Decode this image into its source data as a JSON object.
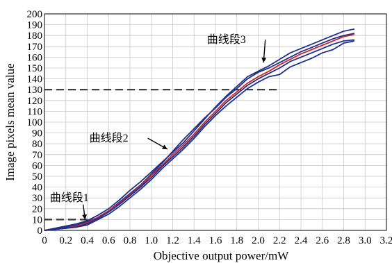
{
  "chart_data": {
    "type": "line",
    "title": "",
    "xlabel": "Objective output power/mW",
    "ylabel": "Image pixels mean value",
    "xlim": [
      0,
      3.2
    ],
    "ylim": [
      0,
      200
    ],
    "grid": true,
    "x_ticks": [
      "0",
      "0.2",
      "0.4",
      "0.6",
      "0.8",
      "1.0",
      "1.2",
      "1.4",
      "1.6",
      "1.8",
      "2.0",
      "2.2",
      "2.4",
      "2.6",
      "2.8",
      "3.0",
      "3.2"
    ],
    "y_ticks": [
      "0",
      "10",
      "20",
      "30",
      "40",
      "50",
      "60",
      "70",
      "80",
      "90",
      "100",
      "110",
      "120",
      "130",
      "140",
      "150",
      "160",
      "170",
      "180",
      "190",
      "200"
    ],
    "series": [
      {
        "color": "#1f2f8c",
        "x": [
          0,
          0.1,
          0.2,
          0.3,
          0.4,
          0.5,
          0.6,
          0.7,
          0.8,
          0.9,
          1.0,
          1.1,
          1.2,
          1.3,
          1.4,
          1.5,
          1.6,
          1.7,
          1.8,
          1.9,
          2.0,
          2.1,
          2.2,
          2.3,
          2.4,
          2.5,
          2.6,
          2.7,
          2.8,
          2.9
        ],
        "y": [
          0,
          2,
          4,
          6,
          9,
          14,
          20,
          28,
          37,
          45,
          54,
          63,
          72,
          81,
          92,
          103,
          114,
          124,
          133,
          142,
          147,
          152,
          158,
          164,
          168,
          172,
          176,
          180,
          184,
          186
        ]
      },
      {
        "color": "#1f2f8c",
        "x": [
          0,
          0.1,
          0.2,
          0.3,
          0.4,
          0.5,
          0.6,
          0.7,
          0.8,
          0.9,
          1.0,
          1.1,
          1.2,
          1.3,
          1.4,
          1.5,
          1.6,
          1.7,
          1.8,
          1.9,
          2.0,
          2.1,
          2.2,
          2.3,
          2.4,
          2.5,
          2.6,
          2.7,
          2.8,
          2.9
        ],
        "y": [
          0,
          1,
          3,
          5,
          8,
          12,
          18,
          26,
          34,
          42,
          52,
          62,
          73,
          84,
          94,
          104,
          113,
          123,
          131,
          140,
          146,
          150,
          155,
          160,
          165,
          169,
          173,
          177,
          180,
          182
        ]
      },
      {
        "color": "#d82020",
        "x": [
          0,
          0.1,
          0.2,
          0.3,
          0.4,
          0.5,
          0.6,
          0.7,
          0.8,
          0.9,
          1.0,
          1.1,
          1.2,
          1.3,
          1.4,
          1.5,
          1.6,
          1.7,
          1.8,
          1.9,
          2.0,
          2.1,
          2.2,
          2.3,
          2.4,
          2.5,
          2.6,
          2.7,
          2.8,
          2.9
        ],
        "y": [
          0,
          1,
          2,
          4,
          7,
          12,
          18,
          25,
          33,
          41,
          51,
          60,
          70,
          79,
          89,
          100,
          110,
          120,
          128,
          136,
          142,
          147,
          153,
          158,
          163,
          167,
          171,
          175,
          179,
          181
        ]
      },
      {
        "color": "#1f2f8c",
        "x": [
          0,
          0.1,
          0.2,
          0.3,
          0.4,
          0.5,
          0.6,
          0.7,
          0.8,
          0.9,
          1.0,
          1.1,
          1.2,
          1.3,
          1.4,
          1.5,
          1.6,
          1.7,
          1.8,
          1.9,
          2.0,
          2.1,
          2.2,
          2.3,
          2.4,
          2.5,
          2.6,
          2.7,
          2.8,
          2.9
        ],
        "y": [
          0,
          1,
          2,
          3,
          6,
          11,
          17,
          24,
          32,
          40,
          49,
          59,
          68,
          77,
          87,
          98,
          108,
          118,
          126,
          134,
          140,
          145,
          150,
          156,
          160,
          164,
          168,
          172,
          175,
          176
        ]
      },
      {
        "color": "#1f2f8c",
        "x": [
          0,
          0.1,
          0.2,
          0.3,
          0.4,
          0.5,
          0.6,
          0.7,
          0.8,
          0.9,
          1.0,
          1.1,
          1.2,
          1.3,
          1.4,
          1.5,
          1.6,
          1.7,
          1.8,
          1.9,
          2.0,
          2.1,
          2.2,
          2.3,
          2.4,
          2.5,
          2.6,
          2.7,
          2.8,
          2.9
        ],
        "y": [
          0,
          1,
          2,
          3,
          5,
          10,
          15,
          22,
          30,
          38,
          47,
          57,
          66,
          75,
          85,
          96,
          106,
          115,
          123,
          131,
          137,
          142,
          144,
          151,
          155,
          159,
          164,
          167,
          173,
          175
        ]
      }
    ],
    "reference_lines": [
      {
        "y": 10,
        "x_from": 0,
        "x_to": 0.5
      },
      {
        "y": 130,
        "x_from": 0,
        "x_to": 2.2
      }
    ],
    "annotations": [
      {
        "text": "曲线段1",
        "x": 0.38,
        "y": 10,
        "label_x": 0.05,
        "label_y": 27
      },
      {
        "text": "曲线段2",
        "x": 1.15,
        "y": 75,
        "label_x": 0.42,
        "label_y": 82
      },
      {
        "text": "曲线段3",
        "x": 2.05,
        "y": 155,
        "label_x": 1.52,
        "label_y": 173
      }
    ]
  }
}
